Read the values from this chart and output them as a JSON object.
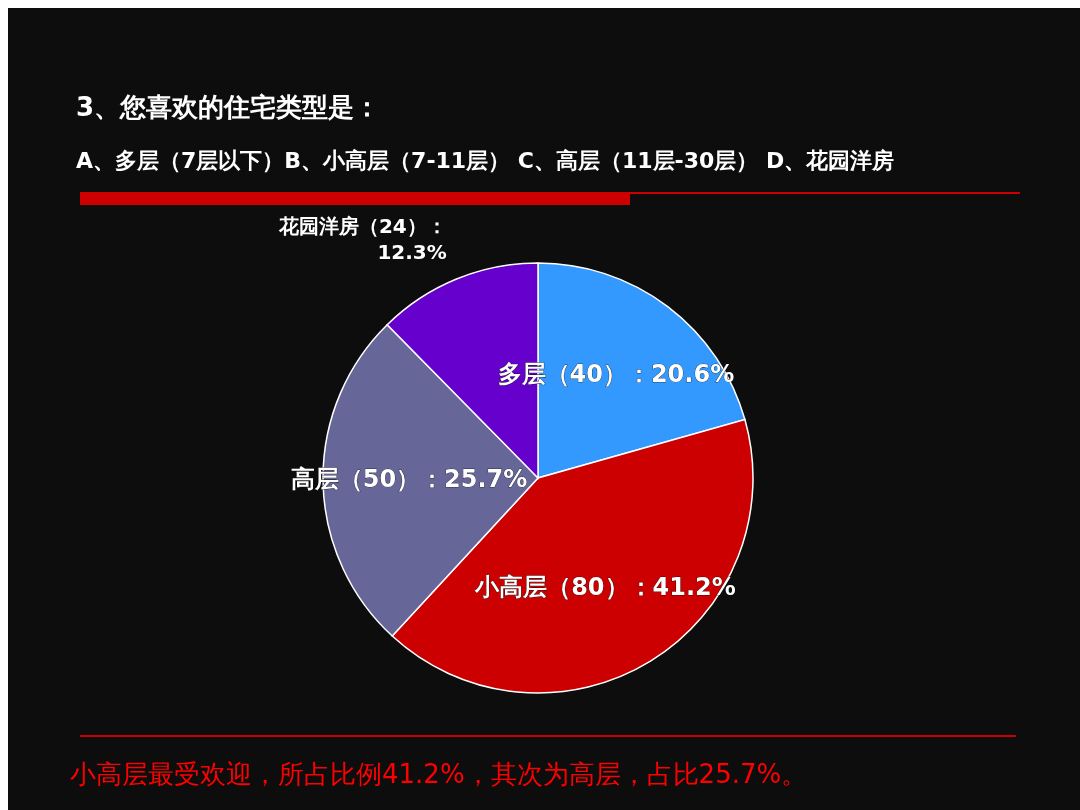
{
  "chart_data": {
    "type": "pie",
    "title": "3、您喜欢的住宅类型是：",
    "subtitle": "A、多层（7层以下）B、小高层（7-11层） C、高层（11层-30层） D、花园洋房",
    "categories": [
      "多层",
      "小高层",
      "高层",
      "花园洋房"
    ],
    "values": [
      40,
      80,
      50,
      24
    ],
    "colors": [
      "#3399ff",
      "#cc0000",
      "#666699",
      "#6600cc"
    ],
    "value_labels": [
      "（40）：20.6%",
      "（80）：41.2%",
      "（50）：25.7%",
      "（24）：12.3%"
    ],
    "annotations": [
      "小高层最受欢迎，所占比例41.2%，其次为高层，占比25.7%。"
    ]
  }
}
